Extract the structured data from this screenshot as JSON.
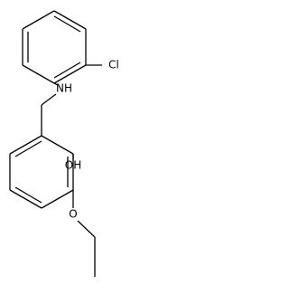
{
  "atom_labels": [
    "Cl",
    "NH",
    "OH",
    "O"
  ]
}
